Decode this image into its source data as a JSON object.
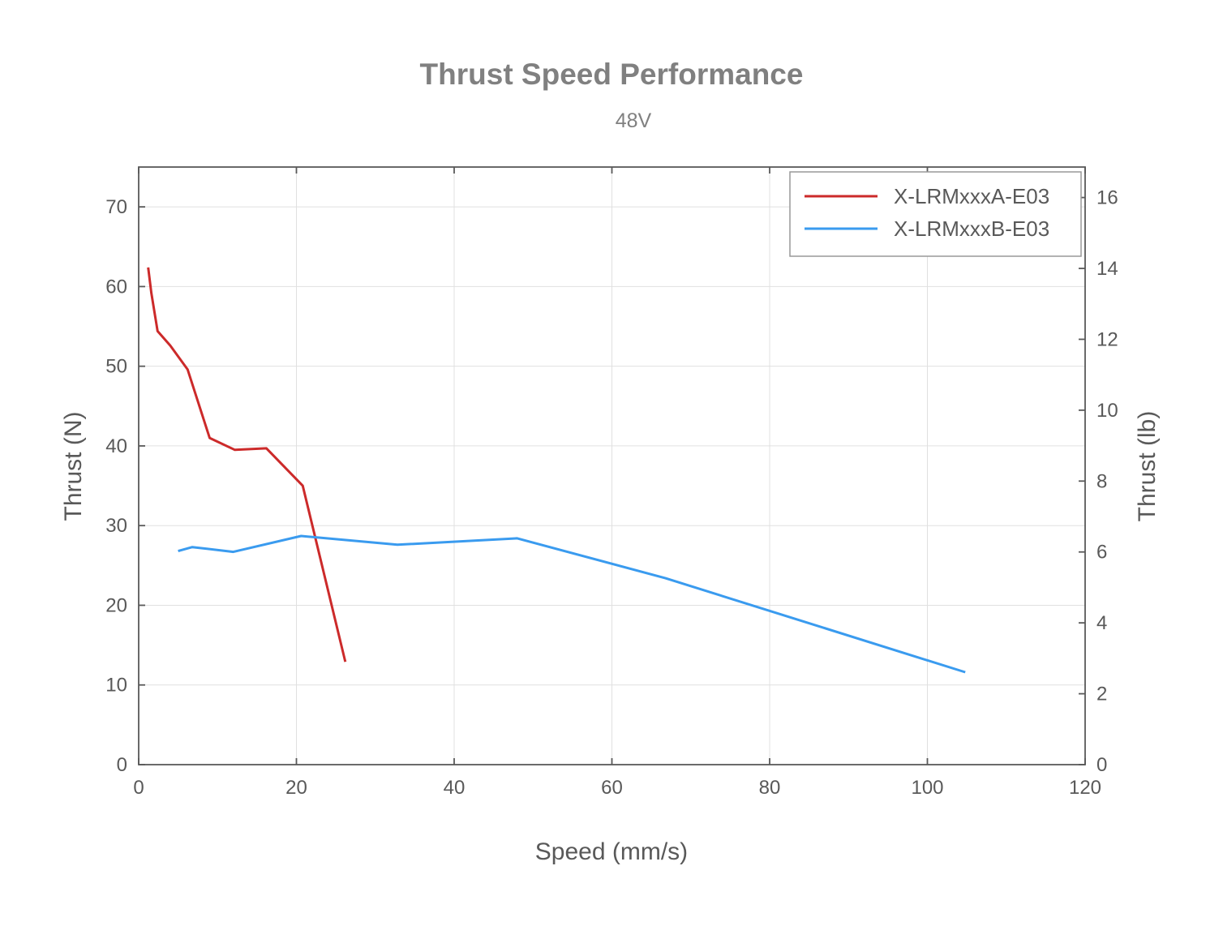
{
  "chart_data": {
    "type": "line",
    "title": "Thrust Speed Performance",
    "subtitle": "48V",
    "xlabel": "Speed (mm/s)",
    "ylabel": "Thrust (N)",
    "y2label": "Thrust (lb)",
    "xlim": [
      0,
      120
    ],
    "ylim": [
      0,
      75
    ],
    "y2lim": [
      0,
      16.86
    ],
    "xticks": [
      "0",
      "20",
      "40",
      "60",
      "80",
      "100",
      "120"
    ],
    "yticks": [
      "0",
      "10",
      "20",
      "30",
      "40",
      "50",
      "60",
      "70"
    ],
    "y2ticks": [
      "0",
      "2",
      "4",
      "6",
      "8",
      "10",
      "12",
      "14",
      "16"
    ],
    "grid": true,
    "legend_position": "top-right",
    "series": [
      {
        "name": "X-LRMxxxA-E03",
        "color": "#cc2a2a",
        "x": [
          1.2,
          1.6,
          2.4,
          4.0,
          6.2,
          9.0,
          12.2,
          16.2,
          20.8,
          26.2
        ],
        "y": [
          62.4,
          59.2,
          54.4,
          52.6,
          49.6,
          41.0,
          39.5,
          39.7,
          35.0,
          12.9
        ]
      },
      {
        "name": "X-LRMxxxB-E03",
        "color": "#3a9bef",
        "x": [
          5.0,
          6.8,
          12.0,
          20.6,
          32.8,
          48.0,
          66.8,
          104.8
        ],
        "y": [
          26.8,
          27.3,
          26.7,
          28.7,
          27.6,
          28.4,
          23.4,
          11.6
        ]
      }
    ]
  }
}
